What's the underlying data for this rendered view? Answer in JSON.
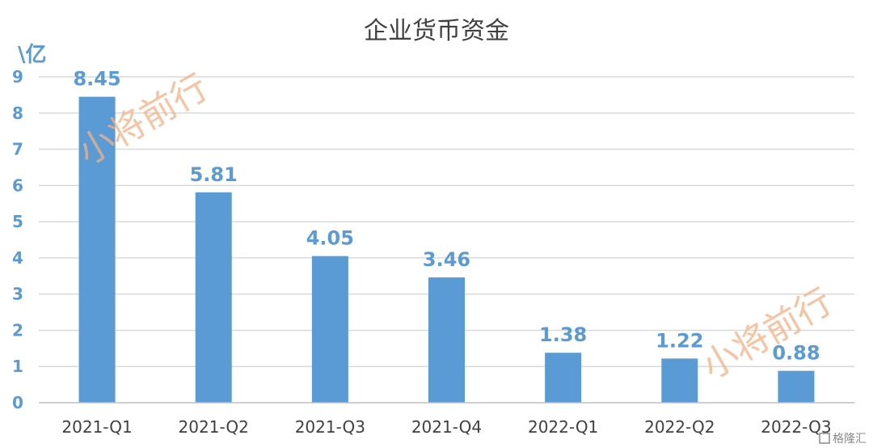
{
  "chart_data": {
    "type": "bar",
    "title": "企业货币资金",
    "unit_label": "\\亿",
    "categories": [
      "2021-Q1",
      "2021-Q2",
      "2021-Q3",
      "2021-Q4",
      "2022-Q1",
      "2022-Q2",
      "2022-Q3"
    ],
    "values": [
      8.45,
      5.81,
      4.05,
      3.46,
      1.38,
      1.22,
      0.88
    ],
    "data_labels": [
      "8.45",
      "5.81",
      "4.05",
      "3.46",
      "1.38",
      "1.22",
      "0.88"
    ],
    "y_ticks": [
      "0",
      "1",
      "2",
      "3",
      "4",
      "5",
      "6",
      "7",
      "8",
      "9"
    ],
    "ylim": [
      0,
      9
    ],
    "grid": true,
    "legend": "none",
    "bar_color": "#5b9bd5"
  },
  "watermarks": [
    "小将前行",
    "小将前行"
  ],
  "logo_text": "格隆汇"
}
